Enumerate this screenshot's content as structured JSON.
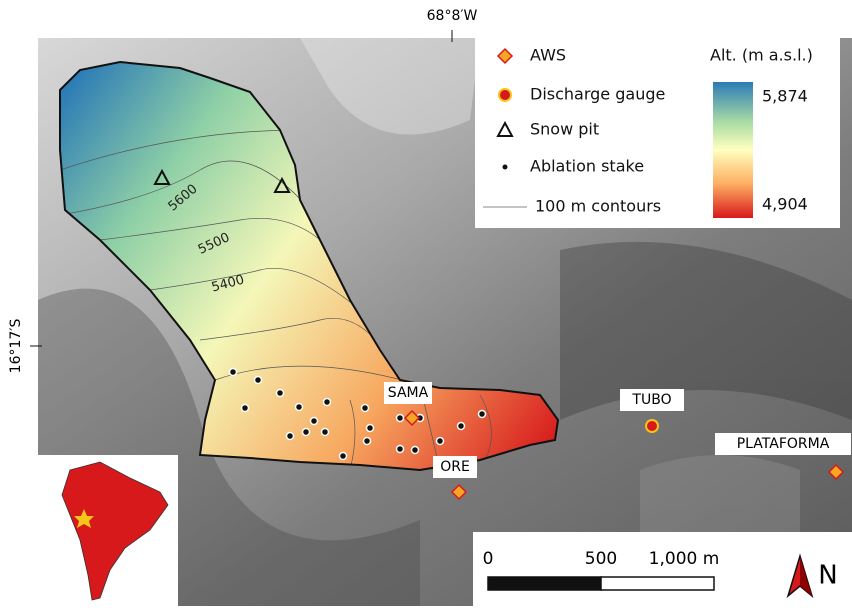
{
  "graticule": {
    "longitude": "68°8′W",
    "latitude": "16°17′S"
  },
  "legend": {
    "items": [
      "AWS",
      "Discharge gauge",
      "Snow pit",
      "Ablation stake",
      "100 m contours"
    ],
    "colorbar": {
      "title": "Alt. (m a.s.l.)",
      "max": {
        "value": 5874,
        "label": "5,874"
      },
      "min": {
        "value": 4904,
        "label": "4,904"
      }
    }
  },
  "contours": [
    5600,
    5500,
    5400
  ],
  "stations": [
    "SAMA",
    "ORE",
    "TUBO",
    "PLATAFORMA"
  ],
  "scale_bar": {
    "ticks": [
      0,
      500,
      {
        "value": 1000,
        "label": "1,000 m"
      }
    ]
  },
  "north_arrow": "N"
}
